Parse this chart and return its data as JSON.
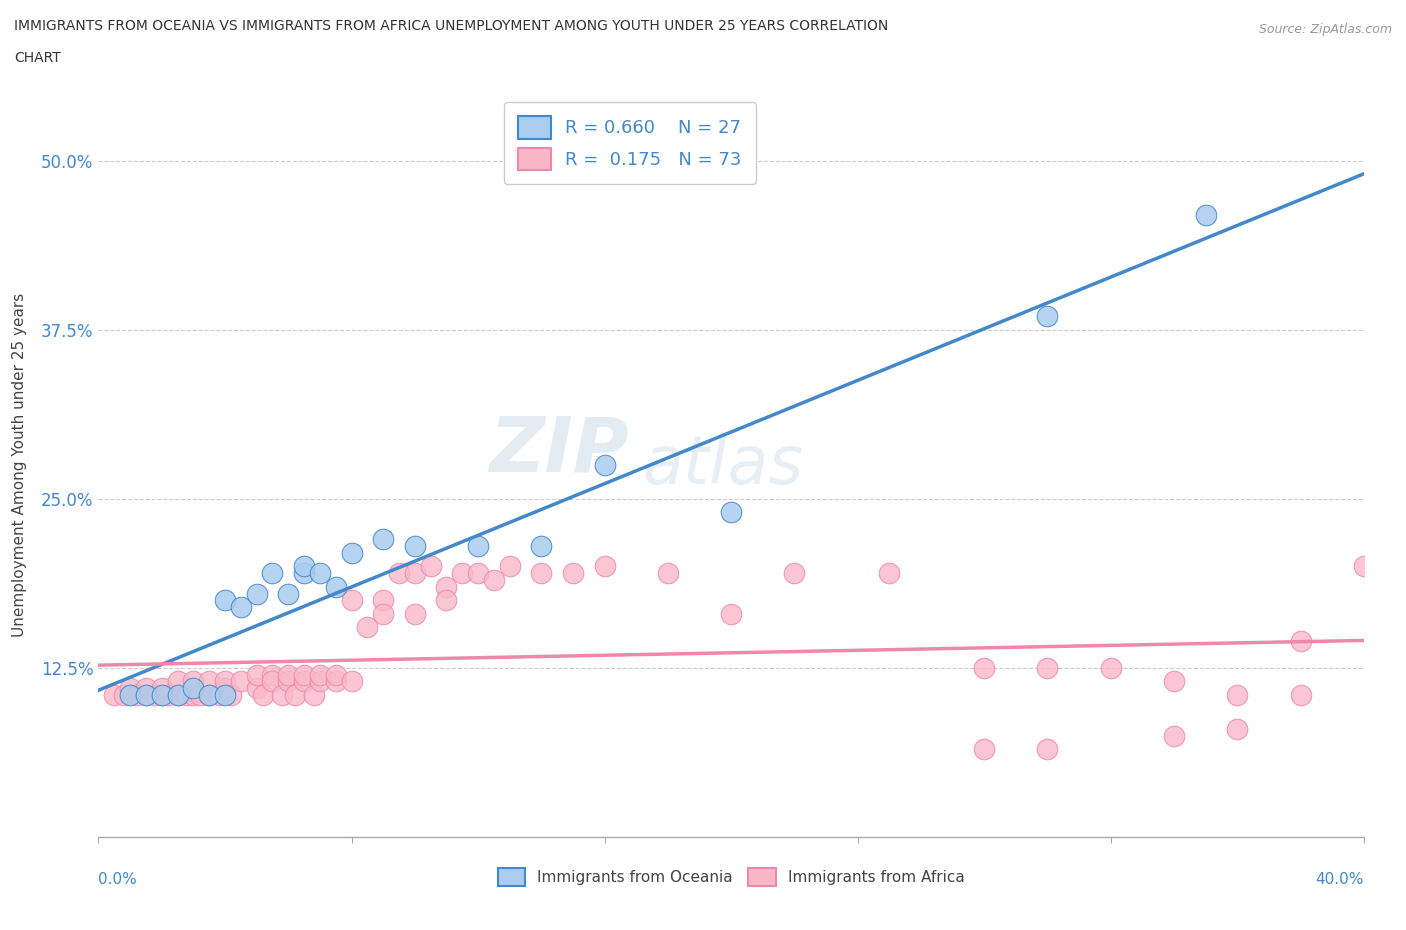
{
  "title_line1": "IMMIGRANTS FROM OCEANIA VS IMMIGRANTS FROM AFRICA UNEMPLOYMENT AMONG YOUTH UNDER 25 YEARS CORRELATION",
  "title_line2": "CHART",
  "source": "Source: ZipAtlas.com",
  "ylabel": "Unemployment Among Youth under 25 years",
  "color_oceania": "#aaccee",
  "color_africa": "#f9b8c8",
  "line_color_oceania": "#4488cc",
  "line_color_africa": "#ee88aa",
  "background_color": "#ffffff",
  "watermark_zip": "ZIP",
  "watermark_atlas": "atlas",
  "xlim": [
    0.0,
    0.4
  ],
  "ylim": [
    0.0,
    0.55
  ],
  "oceania_x": [
    0.01,
    0.015,
    0.02,
    0.025,
    0.03,
    0.035,
    0.04,
    0.04,
    0.045,
    0.05,
    0.055,
    0.06,
    0.065,
    0.065,
    0.07,
    0.075,
    0.08,
    0.09,
    0.1,
    0.12,
    0.14,
    0.16,
    0.2,
    0.3,
    0.35
  ],
  "oceania_y": [
    0.105,
    0.105,
    0.105,
    0.105,
    0.11,
    0.105,
    0.105,
    0.175,
    0.17,
    0.18,
    0.195,
    0.18,
    0.195,
    0.2,
    0.195,
    0.185,
    0.21,
    0.22,
    0.215,
    0.215,
    0.215,
    0.275,
    0.24,
    0.385,
    0.46
  ],
  "africa_x": [
    0.005,
    0.008,
    0.01,
    0.012,
    0.015,
    0.015,
    0.018,
    0.02,
    0.02,
    0.022,
    0.025,
    0.025,
    0.028,
    0.03,
    0.03,
    0.032,
    0.035,
    0.035,
    0.038,
    0.04,
    0.04,
    0.042,
    0.045,
    0.05,
    0.05,
    0.052,
    0.055,
    0.055,
    0.058,
    0.06,
    0.06,
    0.062,
    0.065,
    0.065,
    0.068,
    0.07,
    0.07,
    0.075,
    0.075,
    0.08,
    0.08,
    0.085,
    0.09,
    0.09,
    0.095,
    0.1,
    0.1,
    0.105,
    0.11,
    0.11,
    0.115,
    0.12,
    0.125,
    0.13,
    0.14,
    0.15,
    0.16,
    0.18,
    0.2,
    0.22,
    0.25,
    0.28,
    0.3,
    0.32,
    0.34,
    0.36,
    0.38,
    0.4,
    0.28,
    0.3,
    0.34,
    0.36,
    0.38
  ],
  "africa_y": [
    0.105,
    0.105,
    0.11,
    0.105,
    0.105,
    0.11,
    0.105,
    0.105,
    0.11,
    0.105,
    0.105,
    0.115,
    0.105,
    0.105,
    0.115,
    0.105,
    0.105,
    0.115,
    0.105,
    0.11,
    0.115,
    0.105,
    0.115,
    0.11,
    0.12,
    0.105,
    0.12,
    0.115,
    0.105,
    0.115,
    0.12,
    0.105,
    0.115,
    0.12,
    0.105,
    0.115,
    0.12,
    0.115,
    0.12,
    0.115,
    0.175,
    0.155,
    0.175,
    0.165,
    0.195,
    0.195,
    0.165,
    0.2,
    0.185,
    0.175,
    0.195,
    0.195,
    0.19,
    0.2,
    0.195,
    0.195,
    0.2,
    0.195,
    0.165,
    0.195,
    0.195,
    0.125,
    0.125,
    0.125,
    0.115,
    0.105,
    0.145,
    0.2,
    0.065,
    0.065,
    0.075,
    0.08,
    0.105
  ]
}
